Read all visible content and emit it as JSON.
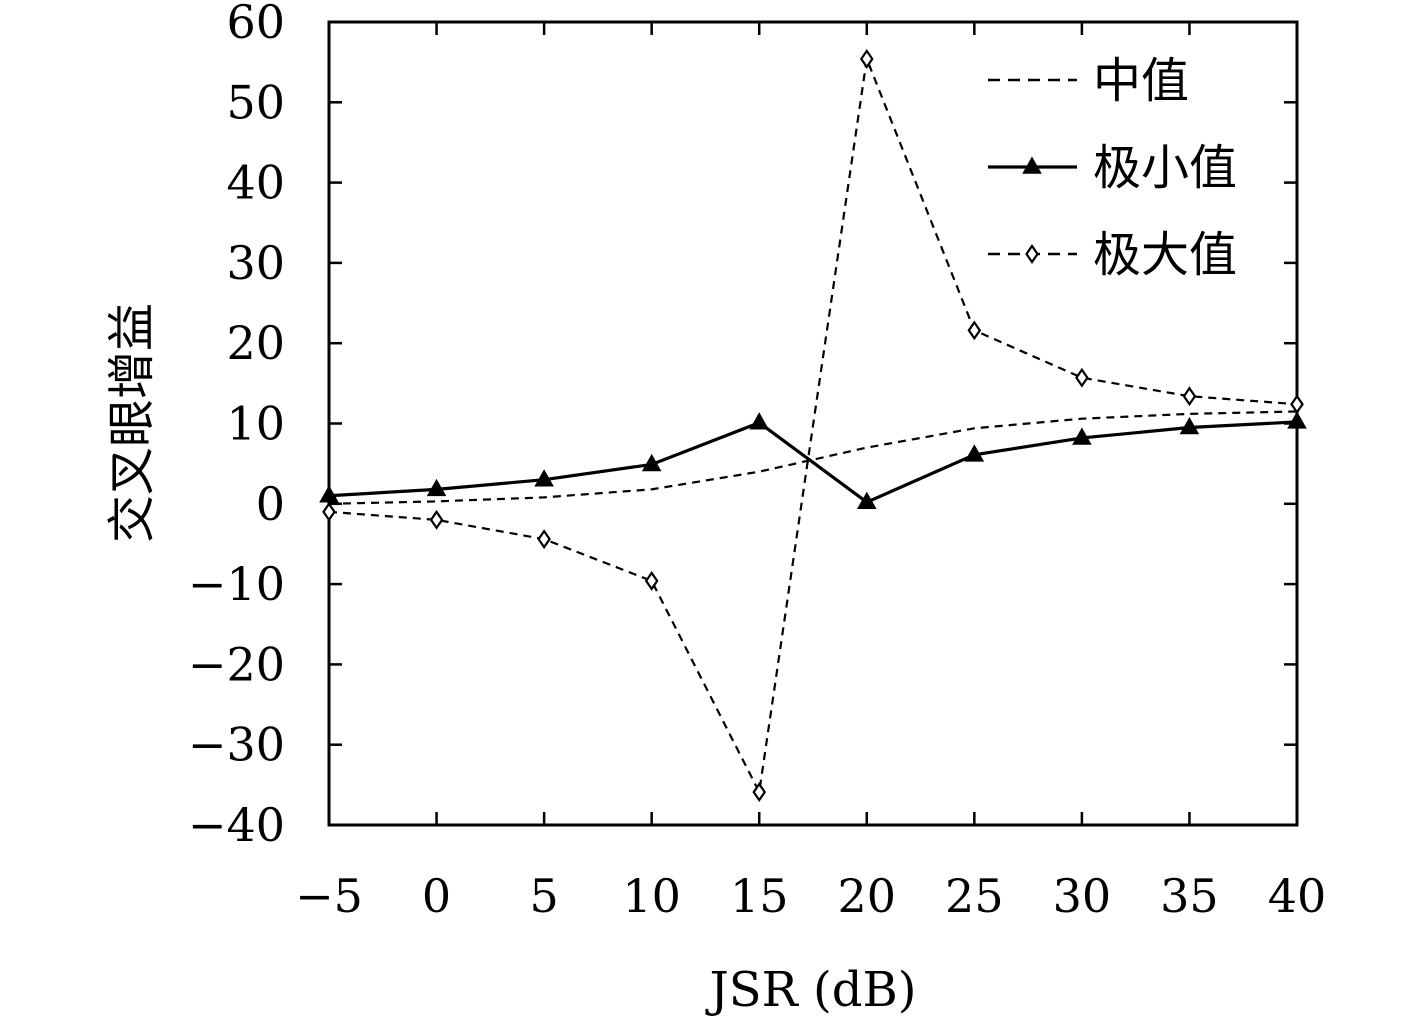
{
  "chart_data": {
    "type": "line",
    "title": "",
    "xlabel": "JSR (dB)",
    "ylabel": "交叉眼增益",
    "x": [
      -5,
      0,
      5,
      10,
      15,
      20,
      25,
      30,
      35,
      40
    ],
    "xlim": [
      -5,
      40
    ],
    "ylim": [
      -40,
      60
    ],
    "xticks": [
      "−5",
      "0",
      "5",
      "10",
      "15",
      "20",
      "25",
      "30",
      "35",
      "40"
    ],
    "yticks": [
      "−40",
      "−30",
      "−20",
      "−10",
      "0",
      "10",
      "20",
      "30",
      "40",
      "50",
      "60"
    ],
    "xtick_values": [
      -5,
      0,
      5,
      10,
      15,
      20,
      25,
      30,
      35,
      40
    ],
    "ytick_values": [
      -40,
      -30,
      -20,
      -10,
      0,
      10,
      20,
      30,
      40,
      50,
      60
    ],
    "grid": false,
    "legend": "top-right",
    "series": [
      {
        "name": "中值",
        "style": "dashed",
        "marker": "none",
        "color": "#000000",
        "values": [
          0.0,
          0.3,
          0.8,
          1.8,
          4.0,
          7.0,
          9.4,
          10.6,
          11.2,
          11.5
        ]
      },
      {
        "name": "极小值",
        "style": "solid",
        "marker": "triangle",
        "color": "#000000",
        "values": [
          1.0,
          1.8,
          3.0,
          4.9,
          10.1,
          0.2,
          6.1,
          8.2,
          9.5,
          10.2
        ]
      },
      {
        "name": "极大值",
        "style": "dashed",
        "marker": "diamond",
        "color": "#000000",
        "values": [
          -1.0,
          -2.0,
          -4.4,
          -9.6,
          -35.9,
          55.4,
          21.6,
          15.7,
          13.4,
          12.4
        ]
      }
    ]
  }
}
